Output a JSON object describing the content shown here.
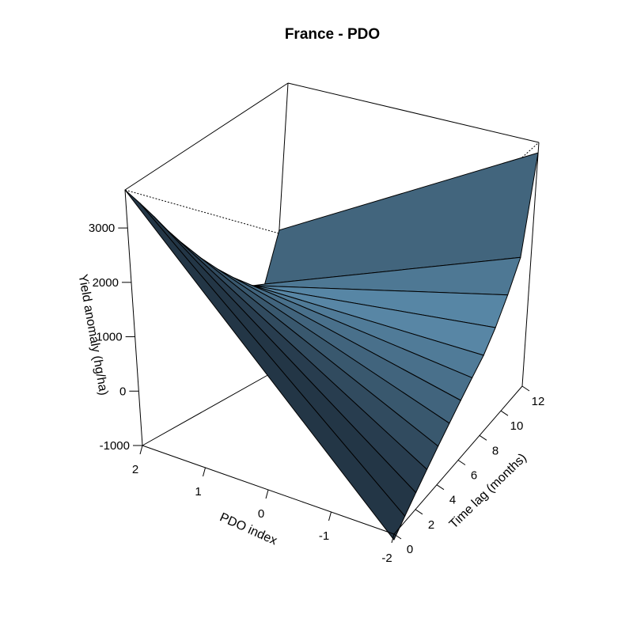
{
  "chart_data": {
    "type": "surface",
    "title": "France - PDO",
    "xlabel": "PDO index",
    "ylabel": "Time lag (months)",
    "zlabel": "Yield anomaly (hg/ha)",
    "x_ticks": [
      "2",
      "1",
      "0",
      "-1",
      "-2"
    ],
    "y_ticks": [
      "0",
      "2",
      "4",
      "6",
      "8",
      "10",
      "12"
    ],
    "z_ticks": [
      "-1000",
      "0",
      "1000",
      "2000",
      "3000"
    ],
    "xlim": [
      -2,
      2
    ],
    "ylim": [
      0,
      12
    ],
    "zlim": [
      -1000,
      3700
    ],
    "surface": {
      "x": [
        2,
        -2
      ],
      "lag": [
        0,
        1,
        2,
        3,
        4,
        5,
        6,
        7,
        8,
        9,
        10,
        11,
        12
      ],
      "z_at_x_2": [
        3700,
        3300,
        2900,
        2500,
        2150,
        1820,
        1520,
        1250,
        1000,
        800,
        650,
        560,
        1320
      ],
      "z_at_x_minus2": [
        -1100,
        -900,
        -700,
        -500,
        -300,
        -100,
        100,
        300,
        500,
        800,
        1200,
        1700,
        3500
      ]
    },
    "colors": {
      "surface_light": "#6AA2C6",
      "surface_dark": "#233646"
    }
  }
}
